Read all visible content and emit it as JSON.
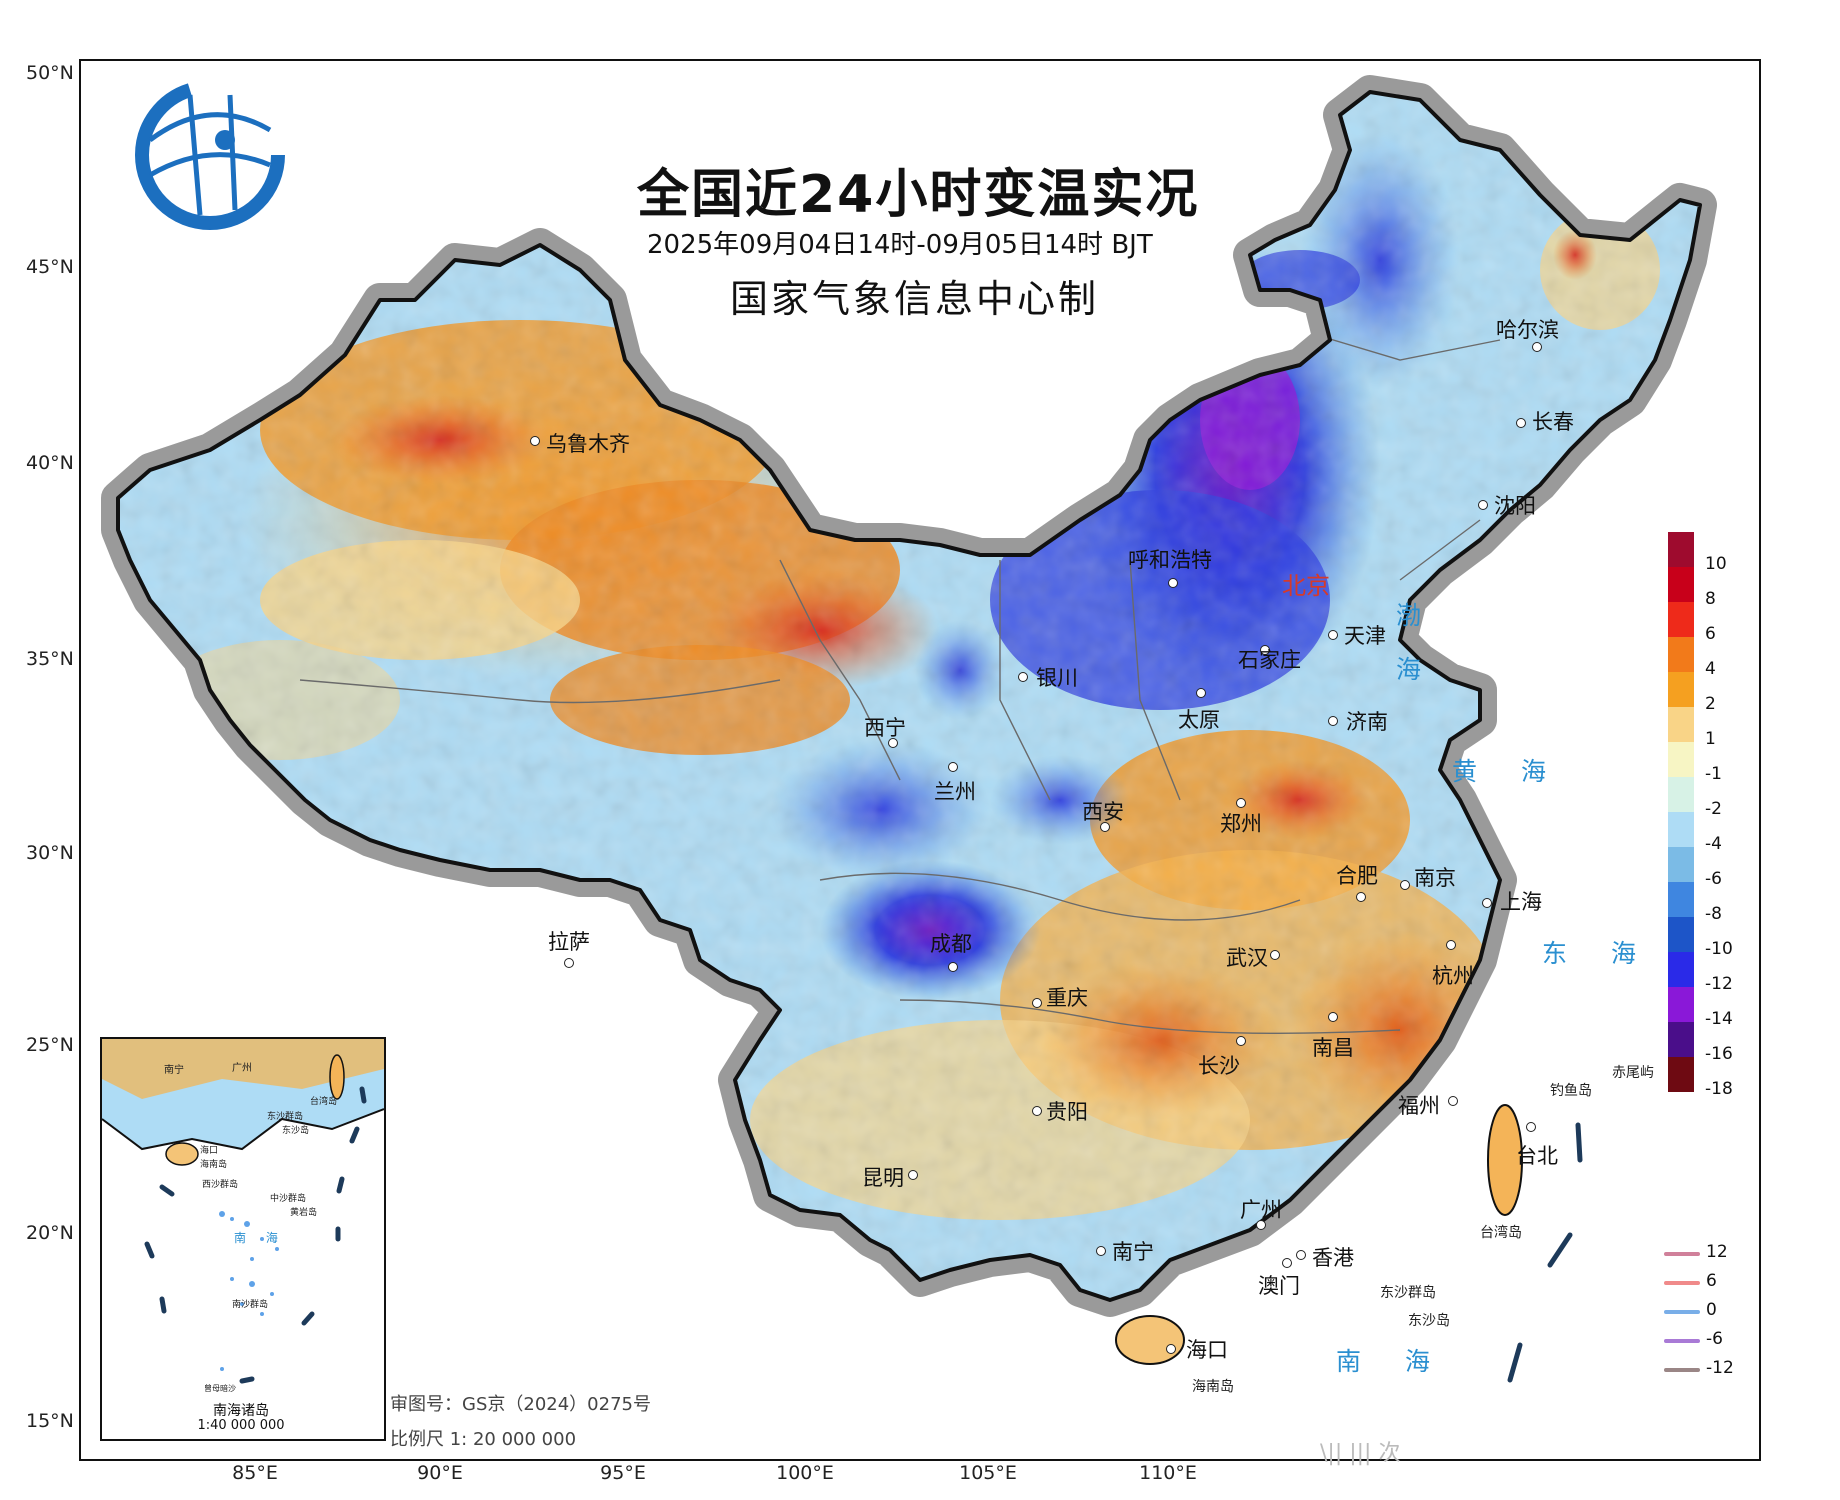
{
  "title": "全国近24小时变温实况",
  "subtitle": "2025年09月04日14时-09月05日14时 BJT",
  "maker": "国家气象信息中心制",
  "approval": "审图号：GS京（2024）0275号",
  "scale": "比例尺 1: 20 000 000",
  "inset": {
    "title": "南海诸岛",
    "scale": "1:40 000 000"
  },
  "lat_labels": [
    "50°N",
    "45°N",
    "40°N",
    "35°N",
    "30°N",
    "25°N",
    "20°N",
    "15°N"
  ],
  "lon_labels": [
    "85°E",
    "90°E",
    "95°E",
    "100°E",
    "105°E",
    "110°E"
  ],
  "capital": "北京",
  "cities": [
    "乌鲁木齐",
    "哈尔滨",
    "长春",
    "沈阳",
    "呼和浩特",
    "天津",
    "石家庄",
    "银川",
    "太原",
    "济南",
    "西宁",
    "兰州",
    "西安",
    "郑州",
    "合肥",
    "南京",
    "上海",
    "拉萨",
    "成都",
    "武汉",
    "杭州",
    "重庆",
    "南昌",
    "长沙",
    "福州",
    "贵阳",
    "台北",
    "昆明",
    "广州",
    "南宁",
    "香港",
    "澳门",
    "海口"
  ],
  "seas": [
    "渤",
    "海",
    "黄 海",
    "东 海",
    "南 海"
  ],
  "islands": [
    "赤尾屿",
    "钓鱼岛",
    "台湾岛",
    "东沙群岛",
    "东沙岛",
    "海南岛"
  ],
  "inset_labels": [
    "南宁",
    "广州",
    "台湾岛",
    "东沙群岛",
    "东沙岛",
    "海口",
    "海南岛",
    "西沙群岛",
    "中沙群岛",
    "黄岩岛",
    "南 海",
    "南沙群岛",
    "曾母暗沙"
  ],
  "legend": {
    "fill_values": [
      "10",
      "8",
      "6",
      "4",
      "2",
      "1",
      "-1",
      "-2",
      "-4",
      "-6",
      "-8",
      "-10",
      "-12",
      "-14",
      "-16",
      "-18"
    ],
    "fill_colors": [
      "#9e0b2e",
      "#c8001a",
      "#ee2a1a",
      "#f27a1a",
      "#f5a020",
      "#f9d487",
      "#f7f5c4",
      "#d7f2e6",
      "#aedcf5",
      "#7bbbe6",
      "#3f86e0",
      "#1d55c8",
      "#2a2ae8",
      "#8a18d8",
      "#4a0e8a",
      "#6e0a12"
    ],
    "line_values": [
      "12",
      "6",
      "0",
      "-6",
      "-12"
    ],
    "line_colors": [
      "#d0809a",
      "#f08a8a",
      "#79aee8",
      "#a97ad6",
      "#9a8686"
    ]
  },
  "watermark": "\\|| ||| 次"
}
